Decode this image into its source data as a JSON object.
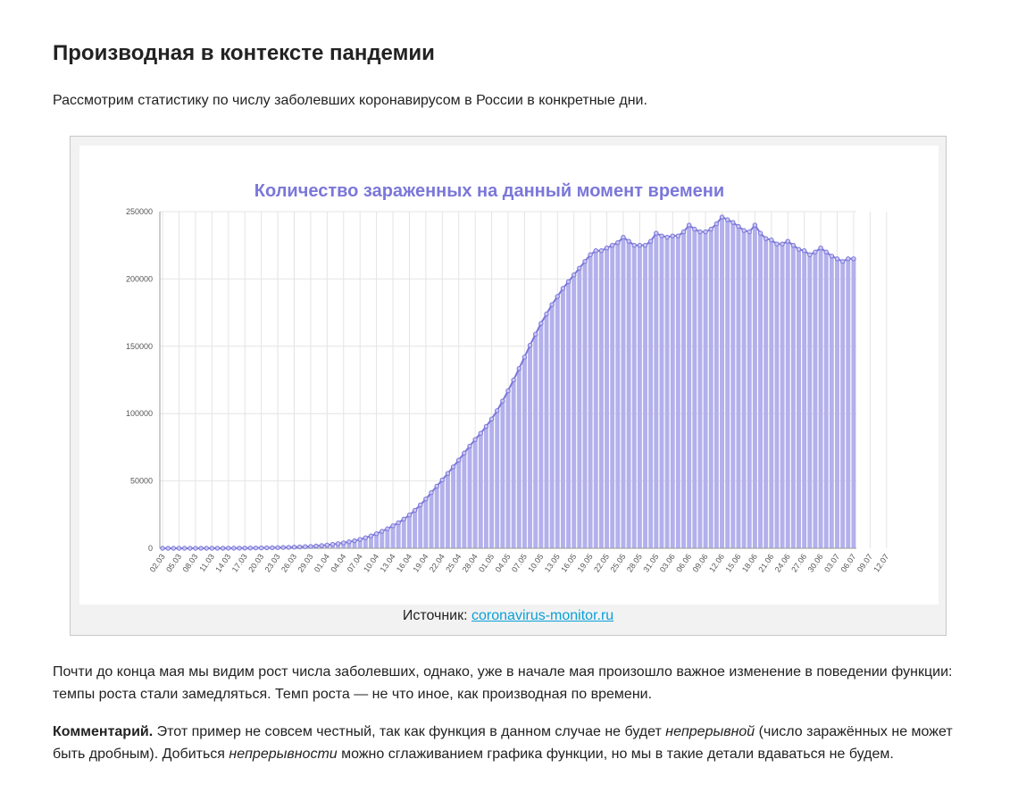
{
  "heading": "Производная в контексте пандемии",
  "intro": "Рассмотрим статистику по числу заболевших коронавирусом в России в конкретные дни.",
  "figure": {
    "source_label": "Источник: ",
    "source_link": "coronavirus-monitor.ru"
  },
  "chart_data": {
    "type": "bar",
    "title": "Количество зараженных на данный момент времени",
    "bar_color": "#b3b0ec",
    "line_color": "#7b77d9",
    "title_color": "#7b77d9",
    "grid": true,
    "ylim": [
      0,
      250000
    ],
    "yticks": [
      "0",
      "50000",
      "100000",
      "150000",
      "200000",
      "250000"
    ],
    "tick_labels": [
      "02.03",
      "05.03",
      "08.03",
      "11.03",
      "14.03",
      "17.03",
      "20.03",
      "23.03",
      "26.03",
      "29.03",
      "01.04",
      "04.04",
      "07.04",
      "10.04",
      "13.04",
      "16.04",
      "19.04",
      "22.04",
      "25.04",
      "28.04",
      "01.05",
      "04.05",
      "07.05",
      "10.05",
      "13.05",
      "16.05",
      "19.05",
      "22.05",
      "25.05",
      "28.05",
      "31.05",
      "03.06",
      "06.06",
      "09.06",
      "12.06",
      "15.06",
      "18.06",
      "21.06",
      "24.06",
      "27.06",
      "30.06",
      "03.07",
      "06.07",
      "09.07",
      "12.07"
    ],
    "values": [
      3,
      3,
      3,
      3,
      10,
      13,
      17,
      20,
      25,
      30,
      40,
      50,
      70,
      90,
      110,
      140,
      180,
      230,
      290,
      350,
      420,
      500,
      600,
      700,
      850,
      1000,
      1200,
      1400,
      1700,
      2000,
      2400,
      2900,
      3400,
      4000,
      4800,
      5600,
      6600,
      7800,
      9200,
      10800,
      12600,
      14500,
      16700,
      19000,
      21700,
      24700,
      28200,
      32200,
      36600,
      41300,
      46100,
      50800,
      55600,
      60500,
      65500,
      70700,
      75900,
      80800,
      85400,
      90500,
      96000,
      102200,
      109400,
      117000,
      125000,
      133500,
      142000,
      150800,
      159000,
      167000,
      174000,
      181000,
      187000,
      193000,
      198000,
      203000,
      208000,
      213000,
      218000,
      221000,
      221000,
      223000,
      225000,
      227000,
      231000,
      228000,
      225000,
      225000,
      225000,
      228000,
      234000,
      232000,
      231000,
      232000,
      232000,
      235000,
      240000,
      237000,
      235000,
      235000,
      237000,
      241000,
      246000,
      244000,
      242000,
      239000,
      236000,
      235000,
      240000,
      234000,
      230000,
      229000,
      226000,
      226000,
      228000,
      225000,
      222000,
      221000,
      218000,
      220000,
      223000,
      220000,
      217000,
      215000,
      213000,
      215000,
      215000
    ]
  }
}
